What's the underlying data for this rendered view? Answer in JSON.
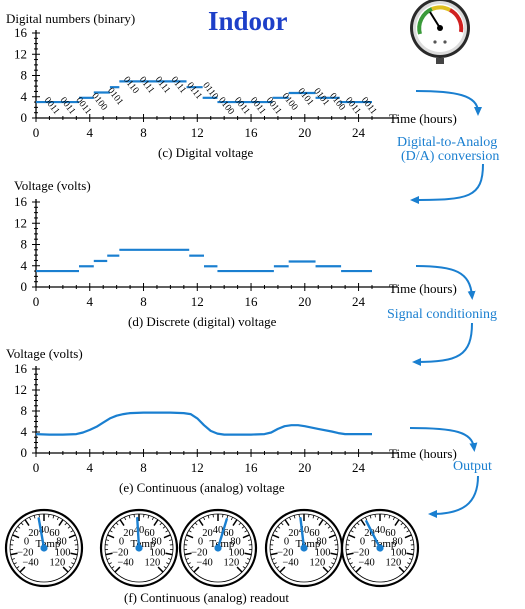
{
  "title": "Indoor",
  "stages": [
    {
      "ylabel": "Digital numbers (binary)",
      "caption": "(c) Digital voltage"
    },
    {
      "ylabel": "Voltage (volts)",
      "caption": "(d) Discrete (digital) voltage"
    },
    {
      "ylabel": "Voltage (volts)",
      "caption": "(e) Continuous (analog) voltage"
    }
  ],
  "xlabel": "Time (hours)",
  "x_ticks": [
    "0",
    "4",
    "8",
    "12",
    "16",
    "20",
    "24"
  ],
  "y_ticks": [
    "0",
    "4",
    "8",
    "12",
    "16"
  ],
  "arrows": [
    {
      "label_lines": [
        "Digital-to-Analog",
        "(D/A) conversion"
      ]
    },
    {
      "label_lines": [
        "Signal conditioning"
      ]
    },
    {
      "label_lines": [
        "Output"
      ]
    }
  ],
  "readout_caption": "(f) Continuous (analog) readout",
  "gauge": {
    "label": "Temp",
    "scale": [
      "−20",
      "0",
      "20",
      "40",
      "60",
      "80",
      "100",
      "120",
      "−40"
    ],
    "readings": [
      34,
      38,
      50,
      36,
      24
    ]
  },
  "binary_codes": [
    "0011",
    "0011",
    "0011",
    "0100",
    "0101",
    "0110",
    "0111",
    "0111",
    "0111",
    "0111",
    "0110",
    "0100",
    "0011",
    "0011",
    "0011",
    "0100",
    "0101",
    "0101",
    "0100",
    "0011",
    "0011"
  ],
  "colors": {
    "signal": "#1a7fd0",
    "title": "#1d3fc8"
  },
  "chart_data": [
    {
      "type": "line",
      "title": "(c) Digital voltage",
      "xlabel": "Time (hours)",
      "ylabel": "Digital numbers (binary)",
      "xlim": [
        0,
        25
      ],
      "ylim": [
        0,
        16
      ],
      "segments": [
        {
          "x": [
            0,
            3.2
          ],
          "y": [
            3,
            3
          ]
        },
        {
          "x": [
            3.2,
            4.3
          ],
          "y": [
            3.8,
            3.8
          ]
        },
        {
          "x": [
            4.3,
            5.5
          ],
          "y": [
            4.8,
            4.8
          ]
        },
        {
          "x": [
            5.5,
            6.2
          ],
          "y": [
            5.8,
            5.8
          ]
        },
        {
          "x": [
            6.2,
            11.2
          ],
          "y": [
            6.9,
            6.9
          ]
        },
        {
          "x": [
            11.2,
            12.4
          ],
          "y": [
            5.8,
            5.8
          ]
        },
        {
          "x": [
            12.4,
            13.5
          ],
          "y": [
            3.8,
            3.8
          ]
        },
        {
          "x": [
            13.5,
            17.6
          ],
          "y": [
            3,
            3
          ]
        },
        {
          "x": [
            17.6,
            18.8
          ],
          "y": [
            3.8,
            3.8
          ]
        },
        {
          "x": [
            18.8,
            20.8
          ],
          "y": [
            4.7,
            4.7
          ]
        },
        {
          "x": [
            20.8,
            22.6
          ],
          "y": [
            3.8,
            3.8
          ]
        },
        {
          "x": [
            22.6,
            25
          ],
          "y": [
            3,
            3
          ]
        }
      ]
    },
    {
      "type": "line",
      "title": "(d) Discrete (digital) voltage",
      "xlabel": "Time (hours)",
      "ylabel": "Voltage (volts)",
      "xlim": [
        0,
        25
      ],
      "ylim": [
        0,
        16
      ],
      "segments": [
        {
          "x": [
            0,
            3.2
          ],
          "y": [
            3,
            3
          ]
        },
        {
          "x": [
            3.2,
            4.3
          ],
          "y": [
            3.9,
            3.9
          ]
        },
        {
          "x": [
            4.3,
            5.3
          ],
          "y": [
            4.9,
            4.9
          ]
        },
        {
          "x": [
            5.3,
            6.2
          ],
          "y": [
            5.9,
            5.9
          ]
        },
        {
          "x": [
            6.2,
            11.4
          ],
          "y": [
            7,
            7
          ]
        },
        {
          "x": [
            11.4,
            12.5
          ],
          "y": [
            5.9,
            5.9
          ]
        },
        {
          "x": [
            12.5,
            13.5
          ],
          "y": [
            3.9,
            3.9
          ]
        },
        {
          "x": [
            13.5,
            17.7
          ],
          "y": [
            3,
            3
          ]
        },
        {
          "x": [
            17.7,
            18.8
          ],
          "y": [
            3.9,
            3.9
          ]
        },
        {
          "x": [
            18.8,
            20.8
          ],
          "y": [
            4.8,
            4.8
          ]
        },
        {
          "x": [
            20.8,
            22.7
          ],
          "y": [
            3.9,
            3.9
          ]
        },
        {
          "x": [
            22.7,
            25
          ],
          "y": [
            3,
            3
          ]
        }
      ]
    },
    {
      "type": "line",
      "title": "(e) Continuous (analog) voltage",
      "xlabel": "Time (hours)",
      "ylabel": "Voltage (volts)",
      "xlim": [
        0,
        25
      ],
      "ylim": [
        0,
        16
      ],
      "series": [
        {
          "x": [
            0,
            1,
            2,
            3,
            3.5,
            4,
            4.5,
            5,
            5.5,
            6,
            6.5,
            7,
            8,
            9,
            10,
            11,
            11.5,
            12,
            12.5,
            13,
            13.5,
            14,
            15,
            16,
            17,
            17.5,
            18,
            18.5,
            19,
            19.5,
            20,
            21,
            22,
            22.5,
            23,
            24,
            25
          ],
          "y": [
            3.6,
            3.5,
            3.5,
            3.6,
            3.9,
            4.4,
            5,
            5.8,
            6.6,
            7.1,
            7.4,
            7.6,
            7.7,
            7.7,
            7.7,
            7.6,
            7.4,
            6.6,
            5.3,
            4.2,
            3.7,
            3.5,
            3.5,
            3.5,
            3.6,
            3.9,
            4.6,
            5.1,
            5.3,
            5.3,
            5.1,
            4.6,
            4.1,
            3.8,
            3.6,
            3.6,
            3.6
          ]
        }
      ]
    }
  ]
}
